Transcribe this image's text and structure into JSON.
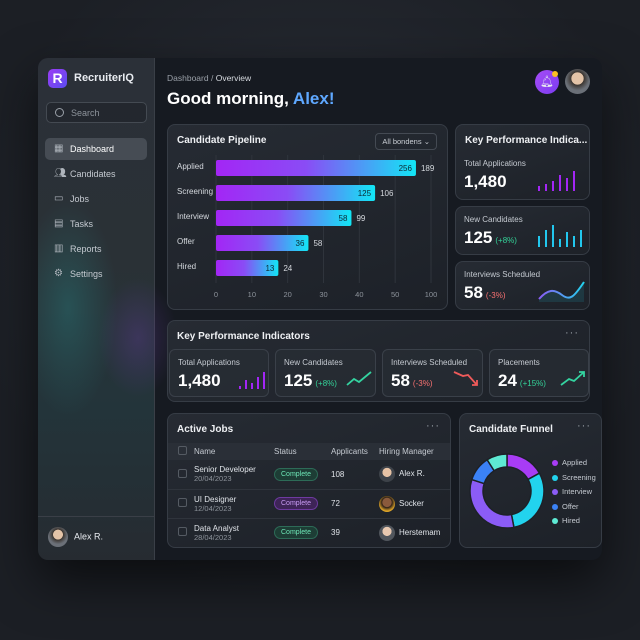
{
  "app": {
    "name": "RecruiterIQ",
    "logo_letter": "R"
  },
  "search": {
    "placeholder": "Search"
  },
  "sidebar": {
    "items": [
      {
        "label": "Dashboard",
        "icon": "grid-icon",
        "active": true
      },
      {
        "label": "Candidates",
        "icon": "users-icon"
      },
      {
        "label": "Jobs",
        "icon": "briefcase-icon"
      },
      {
        "label": "Tasks",
        "icon": "clipboard-icon"
      },
      {
        "label": "Reports",
        "icon": "bar-chart-icon"
      },
      {
        "label": "Settings",
        "icon": "gear-icon"
      }
    ],
    "user": "Alex R."
  },
  "header": {
    "breadcrumb_root": "Dashboard",
    "breadcrumb_sep": "/",
    "breadcrumb_current": "Overview",
    "greeting": "Good morning,",
    "name": "Alex!"
  },
  "pipeline": {
    "title": "Candidate Pipeline",
    "filter": "All bondens"
  },
  "chart_data": {
    "type": "bar",
    "orientation": "horizontal",
    "title": "Candidate Pipeline",
    "categories": [
      "Applied",
      "Screening",
      "Interview",
      "Offer",
      "Hired"
    ],
    "bar_labels": [
      "256",
      "125",
      "58",
      "36",
      "13"
    ],
    "outside_labels": [
      "189",
      "106",
      "99",
      "58",
      "24"
    ],
    "extent_percent_of_axis": [
      93,
      74,
      63,
      43,
      29
    ],
    "x_ticks": [
      "0",
      "10",
      "20",
      "30",
      "40",
      "50",
      "100"
    ],
    "grid": true
  },
  "kpi_side": {
    "title": "Key Performance Indica...",
    "cards": [
      {
        "label": "Total Applications",
        "value": "1,480",
        "change": ""
      },
      {
        "label": "New Candidates",
        "value": "125",
        "change": "(+8%)"
      },
      {
        "label": "Interviews Scheduled",
        "value": "58",
        "change": "(-3%)"
      }
    ]
  },
  "kpi_row": {
    "title": "Key Performance Indicators",
    "menu": "···",
    "cards": [
      {
        "label": "Total Applications",
        "value": "1,480",
        "change": ""
      },
      {
        "label": "New Candidates",
        "value": "125",
        "change": "(+8%)"
      },
      {
        "label": "Interviews Scheduled",
        "value": "58",
        "change": "(-3%)"
      },
      {
        "label": "Placements",
        "value": "24",
        "change": "(+15%)"
      }
    ]
  },
  "jobs": {
    "title": "Active Jobs",
    "menu": "···",
    "columns": [
      "Name",
      "Status",
      "Applicants",
      "Hiring Manager"
    ],
    "rows": [
      {
        "name": "Senior Developer",
        "date": "20/04/2023",
        "status": "Complete",
        "applicants": "108",
        "manager": "Alex R."
      },
      {
        "name": "UI Designer",
        "date": "12/04/2023",
        "status": "Complete",
        "applicants": "72",
        "manager": "Socker"
      },
      {
        "name": "Data Analyst",
        "date": "28/04/2023",
        "status": "Complete",
        "applicants": "39",
        "manager": "Herstemam"
      }
    ]
  },
  "funnel": {
    "title": "Candidate Funnel",
    "menu": "···",
    "legend": [
      "Applied",
      "Screening",
      "Interview",
      "Offer",
      "Hired"
    ],
    "shares": [
      17,
      30,
      33,
      11,
      9
    ],
    "colors": [
      "#a83cf5",
      "#22d3ee",
      "#8b5cf6",
      "#3b82f6",
      "#5eead4"
    ]
  }
}
